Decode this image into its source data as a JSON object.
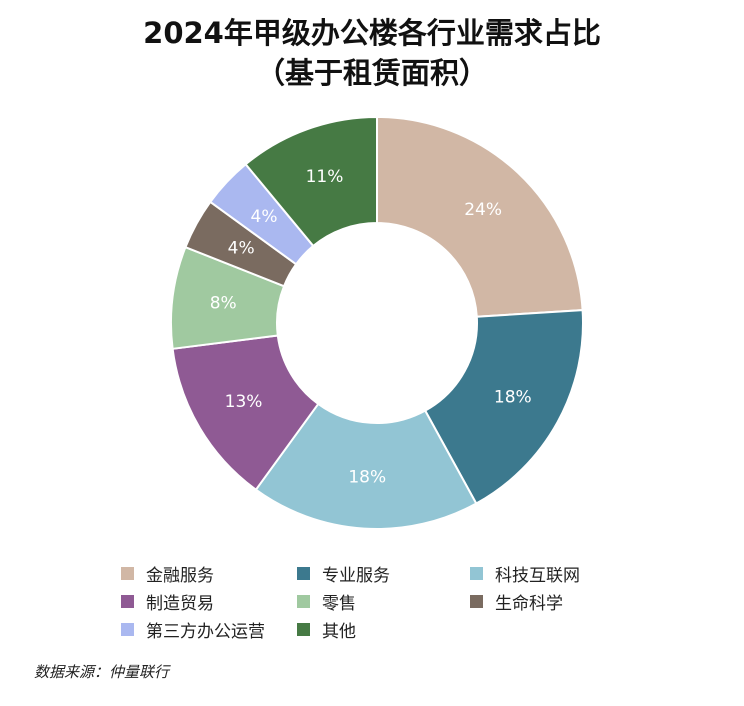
{
  "title_line1": "2024年甲级办公楼各行业需求占比",
  "title_line2": "（基于租赁面积）",
  "source": "数据来源：仲量联行",
  "chart_data": {
    "type": "pie",
    "title": "2024年甲级办公楼各行业需求占比（基于租赁面积）",
    "donut": true,
    "start_angle": "top, clockwise",
    "categories": [
      "金融服务",
      "专业服务",
      "科技互联网",
      "制造贸易",
      "零售",
      "生命科学",
      "第三方办公运营",
      "其他"
    ],
    "values": [
      24,
      18,
      18,
      13,
      8,
      4,
      4,
      11
    ],
    "labels": [
      "24%",
      "18%",
      "18%",
      "13%",
      "8%",
      "4%",
      "4%",
      "11%"
    ],
    "colors": [
      "#d1b7a5",
      "#3c798e",
      "#92c5d4",
      "#8f5a94",
      "#a0c9a0",
      "#7a6b60",
      "#aab8f0",
      "#467a44"
    ],
    "legend_position": "bottom"
  }
}
